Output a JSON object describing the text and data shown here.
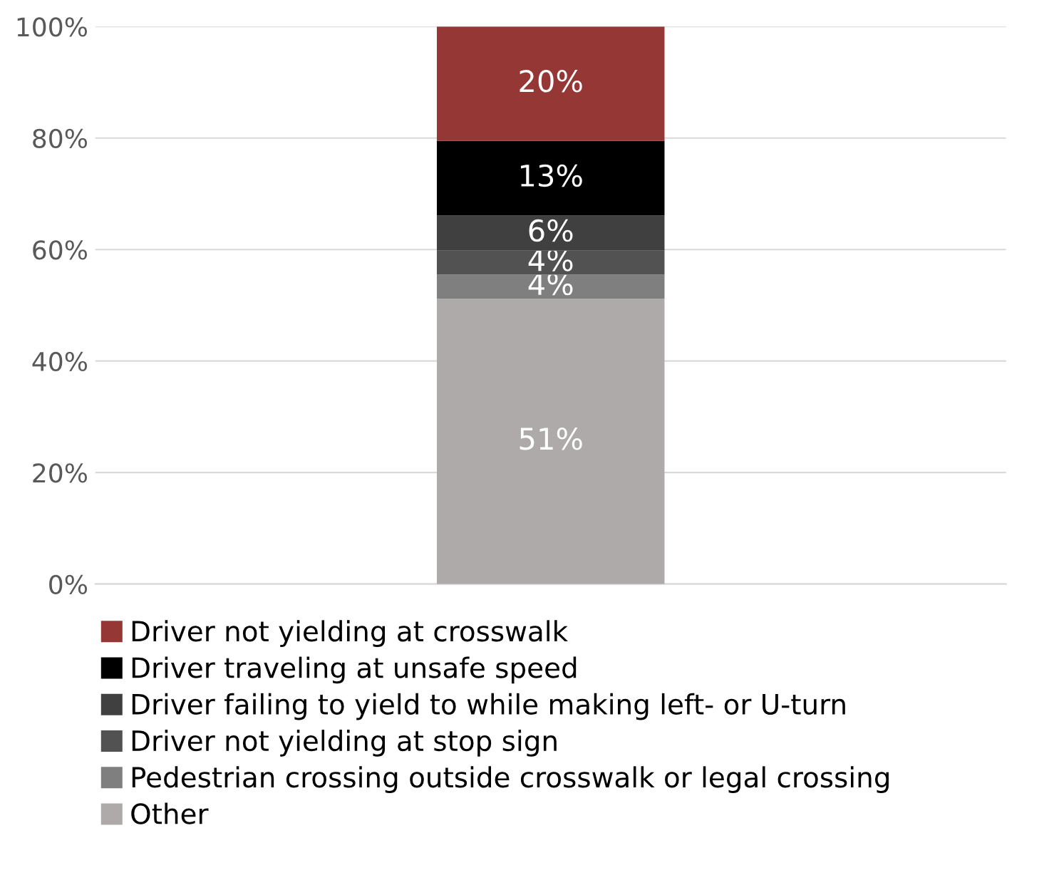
{
  "chart_data": {
    "type": "bar",
    "stacked": true,
    "categories": [
      null
    ],
    "series": [
      {
        "name": "Other",
        "color": "#aeaaaa",
        "values": [
          51.2
        ],
        "value_labels": [
          "51%"
        ]
      },
      {
        "name": "Pedestrian crossing outside crosswalk or legal crossing",
        "color": "#7f7f7f",
        "values": [
          4.3
        ],
        "value_labels": [
          "4%"
        ]
      },
      {
        "name": "Driver not yielding at stop sign",
        "color": "#525252",
        "values": [
          4.3
        ],
        "value_labels": [
          "4%"
        ]
      },
      {
        "name": "Driver failing to yield to while making left- or U-turn",
        "color": "#404040",
        "values": [
          6.3
        ],
        "value_labels": [
          "6%"
        ]
      },
      {
        "name": "Driver traveling at unsafe speed",
        "color": "#000000",
        "values": [
          13.4
        ],
        "value_labels": [
          "13%"
        ]
      },
      {
        "name": "Driver not yielding at crosswalk",
        "color": "#953735",
        "values": [
          20.5
        ],
        "value_labels": [
          "20%"
        ]
      }
    ],
    "ylim": [
      0,
      100
    ],
    "yticks": [
      {
        "value": 0,
        "label": "0%"
      },
      {
        "value": 20,
        "label": "20%"
      },
      {
        "value": 40,
        "label": "40%"
      },
      {
        "value": 60,
        "label": "60%"
      },
      {
        "value": 80,
        "label": "80%"
      },
      {
        "value": 100,
        "label": "100%"
      }
    ],
    "grid": "y",
    "legend": "bottom"
  }
}
